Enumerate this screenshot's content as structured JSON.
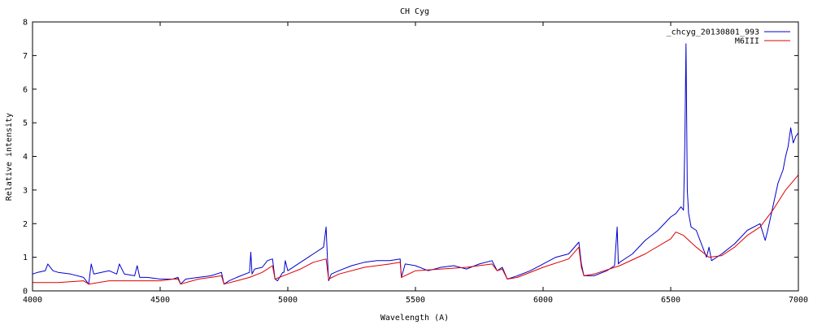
{
  "chart_data": {
    "type": "line",
    "title": "CH Cyg",
    "xlabel": "Wavelength (A)",
    "ylabel": "Relative intensity",
    "xlim": [
      4000,
      7000
    ],
    "ylim": [
      0,
      8
    ],
    "xticks": [
      "4000",
      "4500",
      "5000",
      "5500",
      "6000",
      "6500",
      "7000"
    ],
    "yticks": [
      "0",
      "1",
      "2",
      "3",
      "4",
      "5",
      "6",
      "7",
      "8"
    ],
    "grid": false,
    "legend_position": "top-right",
    "series": [
      {
        "name": "_chcyg_20130801_993",
        "color": "#0000cc",
        "x": [
          4000,
          4020,
          4050,
          4060,
          4080,
          4100,
          4150,
          4200,
          4220,
          4230,
          4240,
          4270,
          4300,
          4330,
          4340,
          4360,
          4400,
          4410,
          4420,
          4450,
          4500,
          4550,
          4570,
          4580,
          4600,
          4650,
          4700,
          4740,
          4750,
          4760,
          4770,
          4800,
          4850,
          4855,
          4860,
          4870,
          4900,
          4920,
          4940,
          4950,
          4960,
          4980,
          4985,
          4990,
          5000,
          5050,
          5100,
          5140,
          5150,
          5155,
          5160,
          5170,
          5200,
          5250,
          5300,
          5350,
          5400,
          5440,
          5445,
          5460,
          5500,
          5550,
          5600,
          5650,
          5700,
          5750,
          5800,
          5820,
          5840,
          5860,
          5900,
          5950,
          6000,
          6050,
          6100,
          6140,
          6150,
          6160,
          6200,
          6250,
          6280,
          6290,
          6295,
          6300,
          6350,
          6400,
          6450,
          6500,
          6520,
          6540,
          6550,
          6555,
          6560,
          6565,
          6570,
          6580,
          6600,
          6620,
          6640,
          6650,
          6660,
          6700,
          6750,
          6800,
          6850,
          6870,
          6880,
          6900,
          6920,
          6940,
          6950,
          6960,
          6970,
          6980,
          6990,
          7000
        ],
        "y": [
          0.5,
          0.55,
          0.6,
          0.8,
          0.6,
          0.55,
          0.5,
          0.4,
          0.2,
          0.8,
          0.5,
          0.55,
          0.6,
          0.5,
          0.8,
          0.5,
          0.45,
          0.75,
          0.4,
          0.4,
          0.35,
          0.35,
          0.4,
          0.2,
          0.35,
          0.4,
          0.45,
          0.55,
          0.2,
          0.25,
          0.3,
          0.4,
          0.55,
          1.15,
          0.5,
          0.65,
          0.7,
          0.9,
          0.95,
          0.35,
          0.3,
          0.55,
          0.55,
          0.9,
          0.6,
          0.85,
          1.1,
          1.3,
          1.9,
          1.0,
          0.3,
          0.5,
          0.6,
          0.75,
          0.85,
          0.9,
          0.9,
          0.95,
          0.4,
          0.8,
          0.75,
          0.6,
          0.7,
          0.75,
          0.65,
          0.8,
          0.9,
          0.6,
          0.7,
          0.35,
          0.45,
          0.6,
          0.8,
          1.0,
          1.1,
          1.45,
          0.8,
          0.45,
          0.45,
          0.6,
          0.75,
          1.9,
          0.8,
          0.85,
          1.1,
          1.5,
          1.8,
          2.2,
          2.3,
          2.5,
          2.4,
          4.3,
          7.35,
          3.0,
          2.3,
          1.9,
          1.8,
          1.4,
          1.0,
          1.3,
          0.9,
          1.1,
          1.4,
          1.8,
          2.0,
          1.5,
          1.8,
          2.5,
          3.2,
          3.6,
          4.0,
          4.3,
          4.85,
          4.4,
          4.6,
          4.7
        ]
      },
      {
        "name": "M6III",
        "color": "#dd0000",
        "x": [
          4000,
          4100,
          4200,
          4220,
          4300,
          4400,
          4500,
          4550,
          4570,
          4580,
          4650,
          4700,
          4740,
          4750,
          4800,
          4850,
          4900,
          4940,
          4950,
          5000,
          5050,
          5100,
          5150,
          5160,
          5200,
          5300,
          5400,
          5440,
          5445,
          5500,
          5600,
          5700,
          5800,
          5820,
          5840,
          5860,
          5900,
          6000,
          6100,
          6140,
          6150,
          6160,
          6200,
          6300,
          6400,
          6500,
          6520,
          6550,
          6600,
          6650,
          6700,
          6750,
          6800,
          6850,
          6900,
          6950,
          7000
        ],
        "y": [
          0.25,
          0.25,
          0.3,
          0.2,
          0.3,
          0.3,
          0.3,
          0.35,
          0.35,
          0.2,
          0.35,
          0.4,
          0.45,
          0.2,
          0.3,
          0.4,
          0.55,
          0.75,
          0.35,
          0.5,
          0.65,
          0.85,
          0.95,
          0.35,
          0.5,
          0.7,
          0.8,
          0.85,
          0.4,
          0.6,
          0.65,
          0.7,
          0.8,
          0.6,
          0.65,
          0.35,
          0.4,
          0.7,
          0.95,
          1.3,
          0.7,
          0.45,
          0.5,
          0.75,
          1.1,
          1.55,
          1.75,
          1.65,
          1.3,
          1.0,
          1.05,
          1.3,
          1.65,
          1.9,
          2.4,
          3.0,
          3.45
        ]
      }
    ]
  }
}
